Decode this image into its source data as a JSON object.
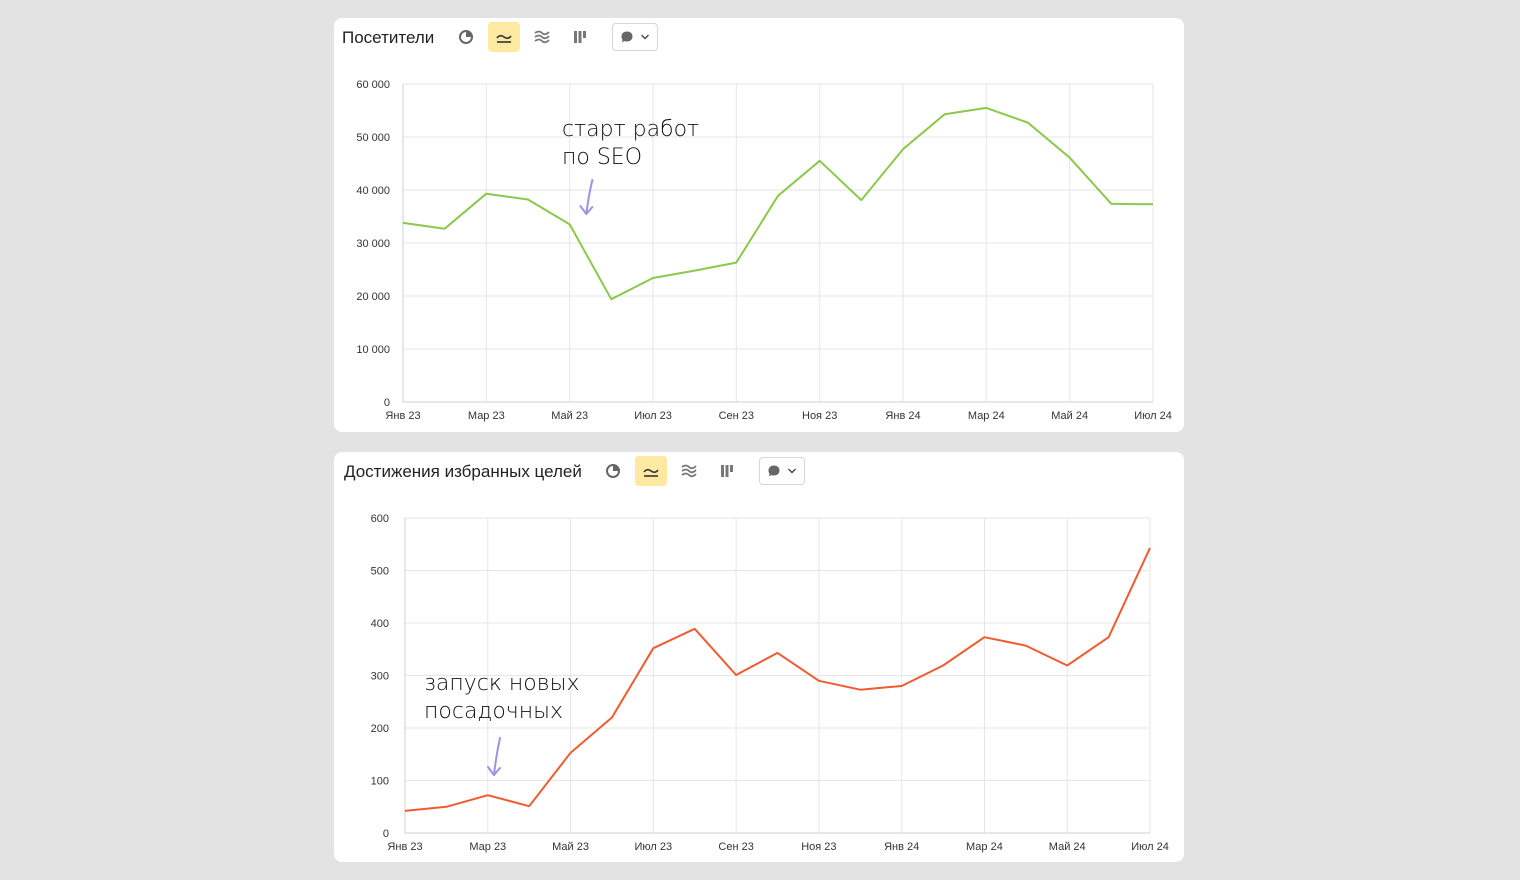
{
  "colors": {
    "series1": "#8cc84b",
    "series2": "#f25a30",
    "grid": "#e6e6e6",
    "arrow": "#9b93e6",
    "active_btn": "#fde9a2"
  },
  "toolbar_icons": [
    "pie-chart-icon",
    "line-chart-icon",
    "area-chart-icon",
    "bar-chart-icon",
    "comment-icon"
  ],
  "chart_data": [
    {
      "type": "line",
      "title": "Посетители",
      "x": [
        "Янв 23",
        "Фев 23",
        "Мар 23",
        "Апр 23",
        "Май 23",
        "Июн 23",
        "Июл 23",
        "Авг 23",
        "Сен 23",
        "Окт 23",
        "Ноя 23",
        "Дек 23",
        "Янв 24",
        "Фев 24",
        "Мар 24",
        "Апр 24",
        "Май 24",
        "Июн 24",
        "Июл 24"
      ],
      "tick_labels": [
        "Янв 23",
        "Мар 23",
        "Май 23",
        "Июл 23",
        "Сен 23",
        "Ноя 23",
        "Янв 24",
        "Мар 24",
        "Май 24",
        "Июл 24"
      ],
      "y_ticks": [
        "0",
        "10 000",
        "20 000",
        "30 000",
        "40 000",
        "50 000",
        "60 000"
      ],
      "ylim": [
        0,
        60000
      ],
      "series": [
        {
          "values": [
            33800,
            32700,
            39300,
            38200,
            33500,
            19400,
            23400,
            24800,
            26300,
            38900,
            45500,
            38100,
            47700,
            54300,
            55500,
            52700,
            46100,
            37400,
            37300
          ]
        }
      ],
      "annotation": {
        "lines": [
          "старт работ",
          "по SEO"
        ],
        "x_index": 4.4
      },
      "grid": true
    },
    {
      "type": "line",
      "title": "Достижения избранных целей",
      "x": [
        "Янв 23",
        "Фев 23",
        "Мар 23",
        "Апр 23",
        "Май 23",
        "Июн 23",
        "Июл 23",
        "Авг 23",
        "Сен 23",
        "Окт 23",
        "Ноя 23",
        "Дек 23",
        "Янв 24",
        "Фев 24",
        "Мар 24",
        "Апр 24",
        "Май 24",
        "Июн 24",
        "Июл 24"
      ],
      "tick_labels": [
        "Янв 23",
        "Мар 23",
        "Май 23",
        "Июл 23",
        "Сен 23",
        "Ноя 23",
        "Янв 24",
        "Мар 24",
        "Май 24",
        "Июл 24"
      ],
      "y_ticks": [
        "0",
        "100",
        "200",
        "300",
        "400",
        "500",
        "600"
      ],
      "ylim": [
        0,
        600
      ],
      "series": [
        {
          "values": [
            42,
            50,
            72,
            51,
            153,
            220,
            352,
            389,
            301,
            343,
            290,
            273,
            280,
            319,
            373,
            357,
            319,
            373,
            543
          ]
        }
      ],
      "annotation": {
        "lines": [
          "запуск новых",
          "посадочных"
        ],
        "x_index": 2.15
      },
      "grid": true
    }
  ]
}
